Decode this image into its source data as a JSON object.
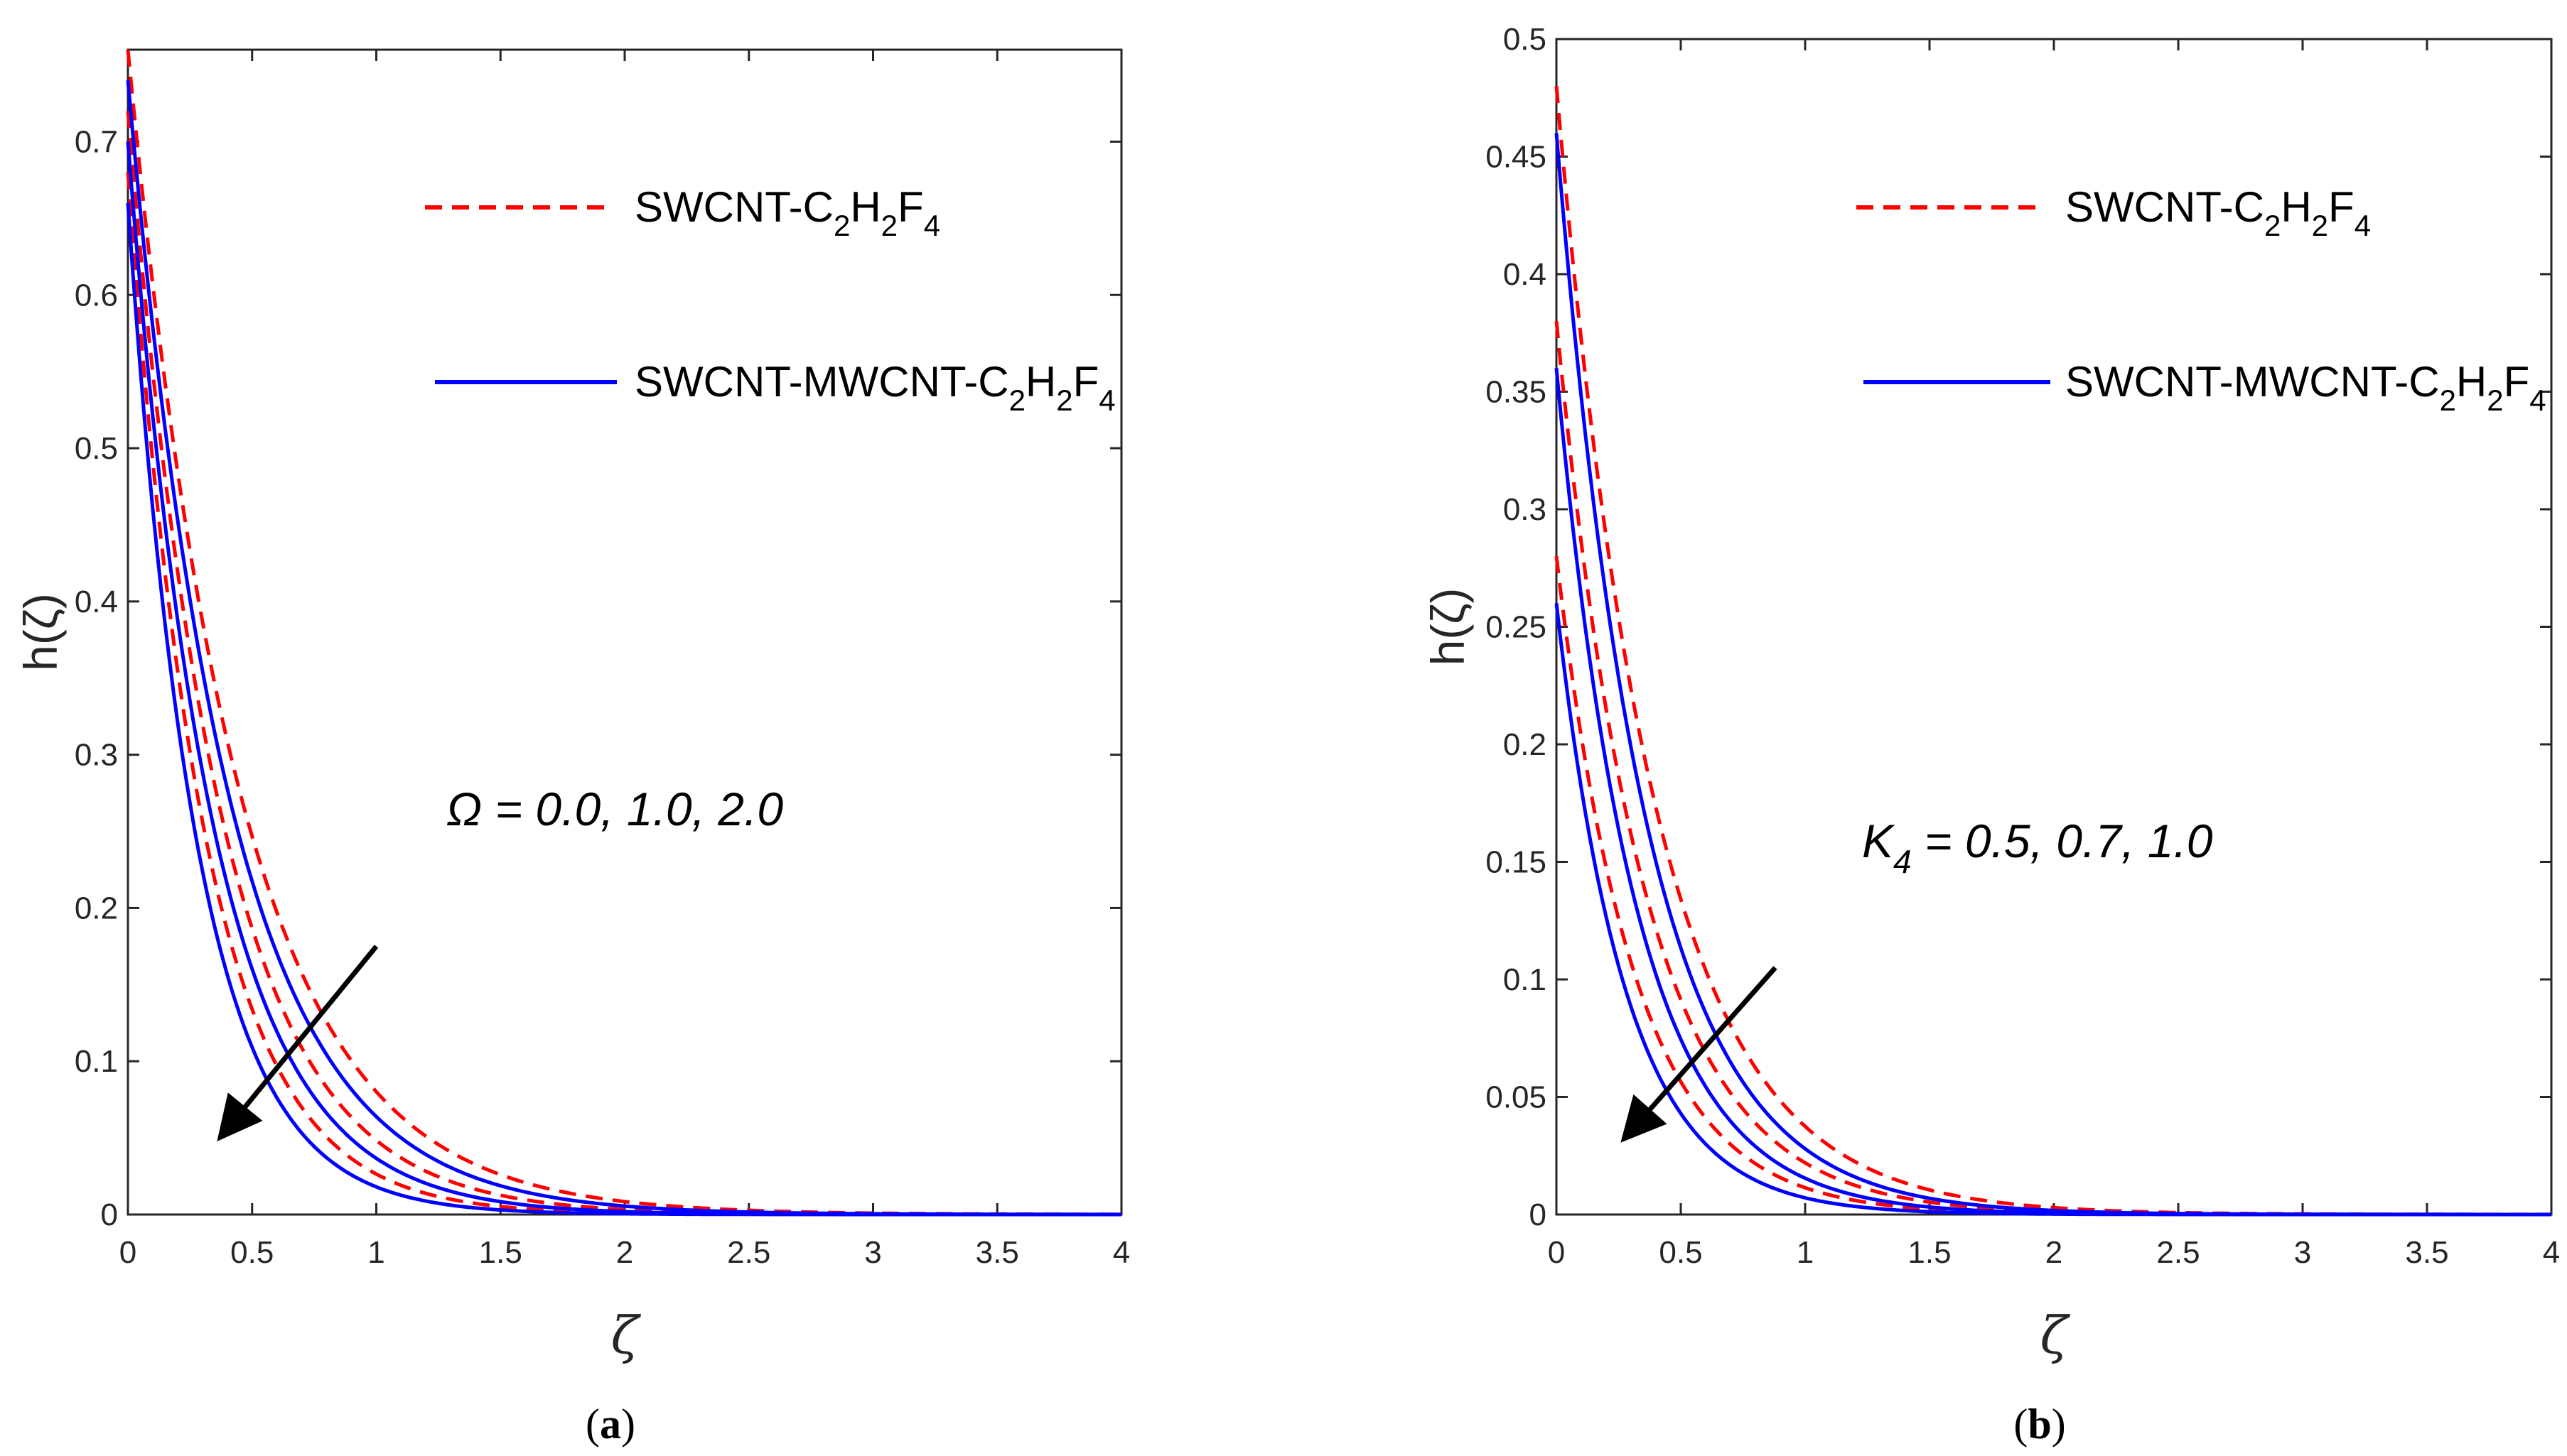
{
  "colors": {
    "red": "#ff0000",
    "blue": "#0000ff",
    "axis": "#262626",
    "arrow": "#000000"
  },
  "chart_data": [
    {
      "type": "line",
      "panel": "a",
      "panel_label": {
        "open": "(",
        "letter": "a",
        "close": ")"
      },
      "xlabel": "ζ",
      "ylabel": "h(ζ)",
      "xlim": [
        0,
        4
      ],
      "ylim": [
        0,
        0.76
      ],
      "xticks": [
        "0",
        "0.5",
        "1",
        "1.5",
        "2",
        "2.5",
        "3",
        "3.5",
        "4"
      ],
      "yticks": [
        "0",
        "0.1",
        "0.2",
        "0.3",
        "0.4",
        "0.5",
        "0.6",
        "0.7"
      ],
      "legend": [
        {
          "label": "SWCNT-C",
          "subs": [
            [
              "2",
              "H"
            ],
            [
              "2",
              "F"
            ],
            [
              "4",
              ""
            ]
          ],
          "style": "dashed",
          "color": "#ff0000"
        },
        {
          "label": "SWCNT-MWCNT-C",
          "subs": [
            [
              "2",
              "H"
            ],
            [
              "2",
              "F"
            ],
            [
              "4",
              ""
            ]
          ],
          "style": "solid",
          "color": "#0000ff"
        }
      ],
      "annotation": {
        "symbol": "Ω",
        "subscript": "",
        "text": " = 0.0, 1.0, 2.0"
      },
      "series": [
        {
          "name": "SWCNT-C2H2F4, Ω = 0.0",
          "style": "dashed",
          "color": "#ff0000",
          "h0": 0.76,
          "decay": 2.25
        },
        {
          "name": "SWCNT-C2H2F4, Ω = 1.0",
          "style": "dashed",
          "color": "#ff0000",
          "h0": 0.72,
          "decay": 2.7
        },
        {
          "name": "SWCNT-C2H2F4, Ω = 2.0",
          "style": "dashed",
          "color": "#ff0000",
          "h0": 0.68,
          "decay": 3.25
        },
        {
          "name": "SWCNT-MWCNT-C2H2F4, Ω = 0.0",
          "style": "solid",
          "color": "#0000ff",
          "h0": 0.74,
          "decay": 2.45
        },
        {
          "name": "SWCNT-MWCNT-C2H2F4, Ω = 1.0",
          "style": "solid",
          "color": "#0000ff",
          "h0": 0.7,
          "decay": 2.95
        },
        {
          "name": "SWCNT-MWCNT-C2H2F4, Ω = 2.0",
          "style": "solid",
          "color": "#0000ff",
          "h0": 0.66,
          "decay": 3.6
        }
      ],
      "arrow": {
        "from": [
          1.0,
          0.175
        ],
        "to": [
          0.37,
          0.05
        ]
      }
    },
    {
      "type": "line",
      "panel": "b",
      "panel_label": {
        "open": "(",
        "letter": "b",
        "close": ")"
      },
      "xlabel": "ζ",
      "ylabel": "h(ζ)",
      "xlim": [
        0,
        4
      ],
      "ylim": [
        0,
        0.5
      ],
      "xticks": [
        "0",
        "0.5",
        "1",
        "1.5",
        "2",
        "2.5",
        "3",
        "3.5",
        "4"
      ],
      "yticks": [
        "0",
        "0.05",
        "0.1",
        "0.15",
        "0.2",
        "0.25",
        "0.3",
        "0.35",
        "0.4",
        "0.45",
        "0.5"
      ],
      "legend": [
        {
          "label": "SWCNT-C",
          "subs": [
            [
              "2",
              "H"
            ],
            [
              "2",
              "F"
            ],
            [
              "4",
              ""
            ]
          ],
          "style": "dashed",
          "color": "#ff0000"
        },
        {
          "label": "SWCNT-MWCNT-C",
          "subs": [
            [
              "2",
              "H"
            ],
            [
              "2",
              "F"
            ],
            [
              "4",
              ""
            ]
          ],
          "style": "solid",
          "color": "#0000ff"
        }
      ],
      "annotation": {
        "symbol": "K",
        "subscript": "4",
        "text": " = 0.5, 0.7, 1.0"
      },
      "series": [
        {
          "name": "SWCNT-C2H2F4, K4 = 0.5",
          "style": "dashed",
          "color": "#ff0000",
          "h0": 0.48,
          "decay": 2.55
        },
        {
          "name": "SWCNT-C2H2F4, K4 = 0.7",
          "style": "dashed",
          "color": "#ff0000",
          "h0": 0.38,
          "decay": 2.85
        },
        {
          "name": "SWCNT-C2H2F4, K4 = 1.0",
          "style": "dashed",
          "color": "#ff0000",
          "h0": 0.28,
          "decay": 3.2
        },
        {
          "name": "SWCNT-MWCNT-C2H2F4, K4 = 0.5",
          "style": "solid",
          "color": "#0000ff",
          "h0": 0.46,
          "decay": 2.8
        },
        {
          "name": "SWCNT-MWCNT-C2H2F4, K4 = 0.7",
          "style": "solid",
          "color": "#0000ff",
          "h0": 0.36,
          "decay": 3.15
        },
        {
          "name": "SWCNT-MWCNT-C2H2F4, K4 = 1.0",
          "style": "solid",
          "color": "#0000ff",
          "h0": 0.26,
          "decay": 3.6
        }
      ],
      "arrow": {
        "from": [
          0.88,
          0.105
        ],
        "to": [
          0.27,
          0.032
        ]
      }
    }
  ]
}
